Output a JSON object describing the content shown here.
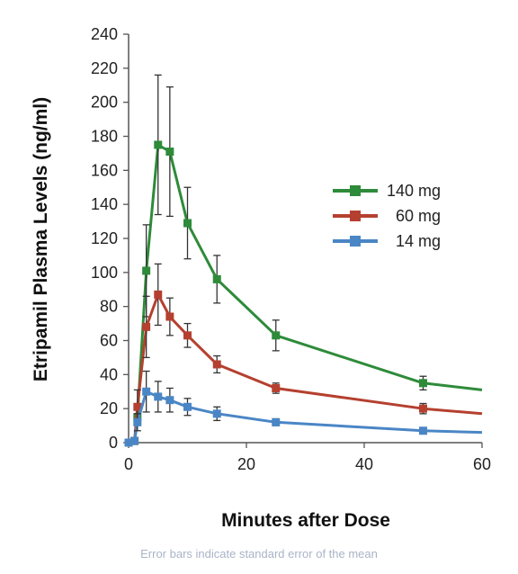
{
  "chart_data": {
    "type": "line",
    "xlabel": "Minutes after Dose",
    "ylabel": "Etripamil Plasma Levels (ng/ml)",
    "xlim": [
      0,
      60
    ],
    "ylim": [
      0,
      240
    ],
    "xticks": [
      0,
      20,
      40,
      60
    ],
    "yticks": [
      0,
      20,
      40,
      60,
      80,
      100,
      120,
      140,
      160,
      180,
      200,
      220,
      240
    ],
    "grid": false,
    "legend_position": "right",
    "series": [
      {
        "name": "140 mg",
        "color": "#2e8b3a",
        "points": [
          {
            "x": 0,
            "y": 0
          },
          {
            "x": 1,
            "y": 1
          },
          {
            "x": 1.5,
            "y": 15
          },
          {
            "x": 3,
            "y": 101,
            "err": 27
          },
          {
            "x": 5,
            "y": 175,
            "err": 41
          },
          {
            "x": 7,
            "y": 171,
            "err": 38
          },
          {
            "x": 10,
            "y": 129,
            "err": 21
          },
          {
            "x": 15,
            "y": 96,
            "err": 14
          },
          {
            "x": 25,
            "y": 63,
            "err": 9
          },
          {
            "x": 50,
            "y": 35,
            "err": 4
          },
          {
            "x": 60,
            "y": 31
          }
        ],
        "marker_count": 10
      },
      {
        "name": "60 mg",
        "color": "#b5402f",
        "points": [
          {
            "x": 0,
            "y": 0
          },
          {
            "x": 1,
            "y": 1
          },
          {
            "x": 1.5,
            "y": 21,
            "err": 10
          },
          {
            "x": 3,
            "y": 68,
            "err": 18
          },
          {
            "x": 5,
            "y": 87,
            "err": 18
          },
          {
            "x": 7,
            "y": 74,
            "err": 11
          },
          {
            "x": 10,
            "y": 63,
            "err": 7
          },
          {
            "x": 15,
            "y": 46,
            "err": 5
          },
          {
            "x": 25,
            "y": 32,
            "err": 3
          },
          {
            "x": 50,
            "y": 20,
            "err": 3
          },
          {
            "x": 60,
            "y": 17
          }
        ],
        "marker_count": 10
      },
      {
        "name": "14 mg",
        "color": "#4a86c5",
        "points": [
          {
            "x": 0,
            "y": 0
          },
          {
            "x": 1,
            "y": 1
          },
          {
            "x": 1.5,
            "y": 12,
            "err": 5
          },
          {
            "x": 3,
            "y": 30,
            "err": 12
          },
          {
            "x": 5,
            "y": 27,
            "err": 9
          },
          {
            "x": 7,
            "y": 25,
            "err": 7
          },
          {
            "x": 10,
            "y": 21,
            "err": 5
          },
          {
            "x": 15,
            "y": 17,
            "err": 4
          },
          {
            "x": 25,
            "y": 12,
            "err": 2
          },
          {
            "x": 50,
            "y": 7,
            "err": 1
          },
          {
            "x": 60,
            "y": 6
          }
        ],
        "marker_count": 10
      }
    ]
  },
  "footnote": "Error bars indicate standard error of the mean"
}
